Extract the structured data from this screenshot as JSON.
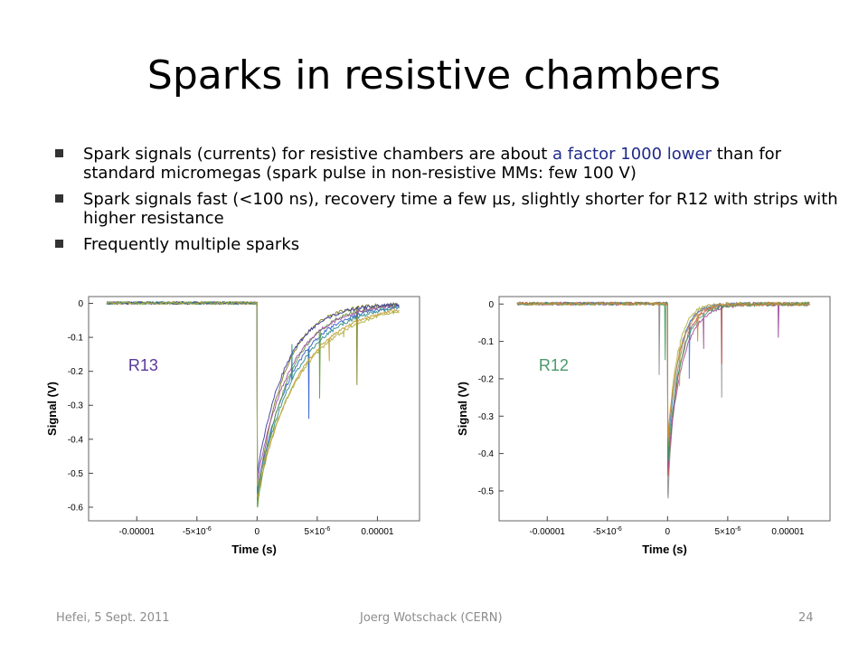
{
  "slide": {
    "title": "Sparks in resistive chambers",
    "bullets": [
      {
        "pre": "Spark signals (currents) for resistive chambers are about ",
        "highlight": "a factor 1000 lower",
        "post": " than for standard micromegas (spark pulse in non-resistive MMs: few 100 V)"
      },
      {
        "pre": "Spark signals fast (<100 ns), recovery time a few µs, slightly shorter for R12 with strips with higher resistance",
        "highlight": "",
        "post": ""
      },
      {
        "pre": "Frequently multiple sparks",
        "highlight": "",
        "post": ""
      }
    ],
    "footer": {
      "left": "Hefei, 5 Sept. 2011",
      "center": "Joerg Wotschack (CERN)",
      "right": "24"
    },
    "colors": {
      "highlight": "#1f2b8a"
    }
  },
  "chart_data": [
    {
      "type": "line",
      "label": "R13",
      "label_color": "#5a3a9a",
      "xlabel": "Time (s)",
      "ylabel": "Signal (V)",
      "xlim": [
        -1.4e-05,
        1.35e-05
      ],
      "ylim": [
        -0.64,
        0.02
      ],
      "xticks": [
        {
          "v": -1e-05,
          "label": "-0.00001",
          "sup": ""
        },
        {
          "v": -5e-06,
          "label": "-5×10",
          "sup": "-6"
        },
        {
          "v": 0,
          "label": "0",
          "sup": ""
        },
        {
          "v": 5e-06,
          "label": "5×10",
          "sup": "-6"
        },
        {
          "v": 1e-05,
          "label": "0.00001",
          "sup": ""
        }
      ],
      "yticks": [
        {
          "v": 0,
          "label": "0"
        },
        {
          "v": -0.1,
          "label": "-0.1"
        },
        {
          "v": -0.2,
          "label": "-0.2"
        },
        {
          "v": -0.3,
          "label": "-0.3"
        },
        {
          "v": -0.4,
          "label": "-0.4"
        },
        {
          "v": -0.5,
          "label": "-0.5"
        },
        {
          "v": -0.6,
          "label": "-0.6"
        }
      ],
      "series": [
        {
          "color": "#7a7a1a",
          "peak": -0.58,
          "tau": 2.2e-06,
          "spikes": [
            [
              8.3e-06,
              -0.24
            ]
          ]
        },
        {
          "color": "#2a5ac8",
          "peak": -0.55,
          "tau": 3e-06,
          "spikes": [
            [
              4.3e-06,
              -0.34
            ]
          ]
        },
        {
          "color": "#5a9a3a",
          "peak": -0.6,
          "tau": 2.6e-06,
          "spikes": [
            [
              5.2e-06,
              -0.28
            ]
          ]
        },
        {
          "color": "#a04aa0",
          "peak": -0.52,
          "tau": 2.8e-06,
          "spikes": []
        },
        {
          "color": "#c09a2a",
          "peak": -0.57,
          "tau": 3.5e-06,
          "spikes": [
            [
              6e-06,
              -0.17
            ]
          ]
        },
        {
          "color": "#3a3a9a",
          "peak": -0.5,
          "tau": 2.4e-06,
          "spikes": []
        },
        {
          "color": "#2a8a8a",
          "peak": -0.56,
          "tau": 3.2e-06,
          "spikes": [
            [
              2.9e-06,
              -0.12
            ]
          ]
        },
        {
          "color": "#b0b040",
          "peak": -0.54,
          "tau": 3.8e-06,
          "spikes": [
            [
              7.2e-06,
              -0.1
            ]
          ]
        }
      ]
    },
    {
      "type": "line",
      "label": "R12",
      "label_color": "#4a9a6a",
      "xlabel": "Time (s)",
      "ylabel": "Signal (V)",
      "xlim": [
        -1.4e-05,
        1.35e-05
      ],
      "ylim": [
        -0.58,
        0.02
      ],
      "xticks": [
        {
          "v": -1e-05,
          "label": "-0.00001",
          "sup": ""
        },
        {
          "v": -5e-06,
          "label": "-5×10",
          "sup": "-6"
        },
        {
          "v": 0,
          "label": "0",
          "sup": ""
        },
        {
          "v": 5e-06,
          "label": "5×10",
          "sup": "-6"
        },
        {
          "v": 1e-05,
          "label": "0.00001",
          "sup": ""
        }
      ],
      "yticks": [
        {
          "v": 0,
          "label": "0"
        },
        {
          "v": -0.1,
          "label": "-0.1"
        },
        {
          "v": -0.2,
          "label": "-0.2"
        },
        {
          "v": -0.3,
          "label": "-0.3"
        },
        {
          "v": -0.4,
          "label": "-0.4"
        },
        {
          "v": -0.5,
          "label": "-0.5"
        }
      ],
      "series": [
        {
          "color": "#8a8a8a",
          "peak": -0.52,
          "tau": 8e-07,
          "spikes": [
            [
              -7e-07,
              -0.19
            ],
            [
              4.5e-06,
              -0.25
            ]
          ]
        },
        {
          "color": "#c04a4a",
          "peak": -0.46,
          "tau": 1e-06,
          "spikes": [
            [
              4.5e-06,
              -0.16
            ]
          ]
        },
        {
          "color": "#4a7ac8",
          "peak": -0.4,
          "tau": 9e-07,
          "spikes": [
            [
              1.8e-06,
              -0.2
            ]
          ]
        },
        {
          "color": "#9a4a9a",
          "peak": -0.44,
          "tau": 1.2e-06,
          "spikes": [
            [
              3e-06,
              -0.12
            ],
            [
              9.2e-06,
              -0.09
            ]
          ]
        },
        {
          "color": "#b0b040",
          "peak": -0.38,
          "tau": 8e-07,
          "spikes": [
            [
              1e-06,
              -0.22
            ]
          ]
        },
        {
          "color": "#3a9a5a",
          "peak": -0.42,
          "tau": 1.1e-06,
          "spikes": [
            [
              -2e-07,
              -0.15
            ]
          ]
        },
        {
          "color": "#d08a3a",
          "peak": -0.36,
          "tau": 1e-06,
          "spikes": [
            [
              2.5e-06,
              -0.1
            ]
          ]
        }
      ]
    }
  ]
}
